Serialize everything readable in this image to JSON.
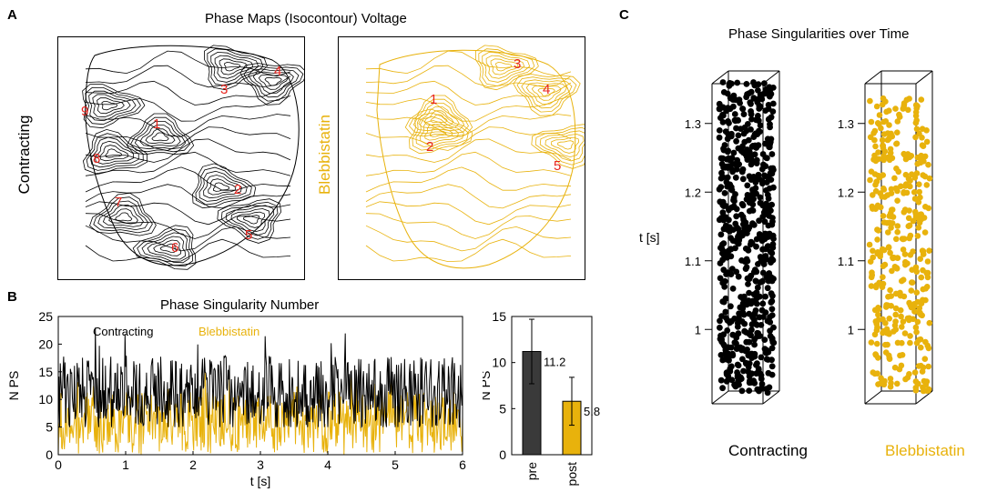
{
  "panels": {
    "a": {
      "letter": "A",
      "title": "Phase Maps (Isocontour) Voltage",
      "left_label": "Contracting",
      "right_label": "Blebbistatin",
      "left_ps_labels": [
        "1",
        "2",
        "3",
        "4",
        "5",
        "6",
        "7",
        "8",
        "9"
      ],
      "right_ps_labels": [
        "1",
        "2",
        "3",
        "4",
        "5"
      ]
    },
    "b": {
      "letter": "B",
      "title": "Phase Singularity Number",
      "ylabel": "N PS",
      "xlabel": "t [s]",
      "legend": [
        "Contracting",
        "Blebbistatin"
      ]
    },
    "c": {
      "letter": "C",
      "title": "Phase Singularities over Time",
      "ylabel": "t [s]",
      "ticks": [
        "1.3",
        "1.2",
        "1.1",
        "1"
      ],
      "label_left": "Contracting",
      "label_right": "Blebbistatin"
    }
  },
  "colors": {
    "contracting": "#000000",
    "blebbistatin": "#e8b20c",
    "annotation": "#e8231c",
    "bar_pre": "#3a3a3a",
    "bar_post": "#e8b20c"
  },
  "chart_data": [
    {
      "id": "ps-number-timeseries",
      "type": "line",
      "title": "Phase Singularity Number",
      "xlabel": "t [s]",
      "ylabel": "N PS",
      "xlim": [
        0,
        6
      ],
      "ylim": [
        0,
        25
      ],
      "xticks": [
        "0",
        "1",
        "2",
        "3",
        "4",
        "5",
        "6"
      ],
      "yticks": [
        "0",
        "5",
        "10",
        "15",
        "20",
        "25"
      ],
      "legend": [
        "Contracting",
        "Blebbistatin"
      ],
      "series": [
        {
          "name": "Contracting",
          "color": "#000000",
          "mean": 11.2,
          "range": [
            5,
            23
          ],
          "n_samples": 600
        },
        {
          "name": "Blebbistatin",
          "color": "#e8b20c",
          "mean": 5.8,
          "range": [
            0,
            15
          ],
          "n_samples": 600
        }
      ]
    },
    {
      "id": "ps-mean-bar",
      "type": "bar",
      "categories": [
        "pre",
        "post"
      ],
      "values": [
        11.2,
        5.8
      ],
      "errors": [
        3.5,
        2.6
      ],
      "value_labels": [
        "11.2",
        "5.8"
      ],
      "ylabel": "N PS",
      "ylim": [
        0,
        15
      ],
      "yticks": [
        "0",
        "5",
        "10",
        "15"
      ]
    },
    {
      "id": "ps-3d-scatter",
      "type": "scatter",
      "title": "Phase Singularities over Time",
      "zlabel": "t [s]",
      "zlim": [
        0.95,
        1.35
      ],
      "zticks": [
        "1",
        "1.1",
        "1.2",
        "1.3"
      ],
      "series": [
        {
          "name": "Contracting",
          "color": "#000000"
        },
        {
          "name": "Blebbistatin",
          "color": "#e8b20c"
        }
      ]
    }
  ]
}
